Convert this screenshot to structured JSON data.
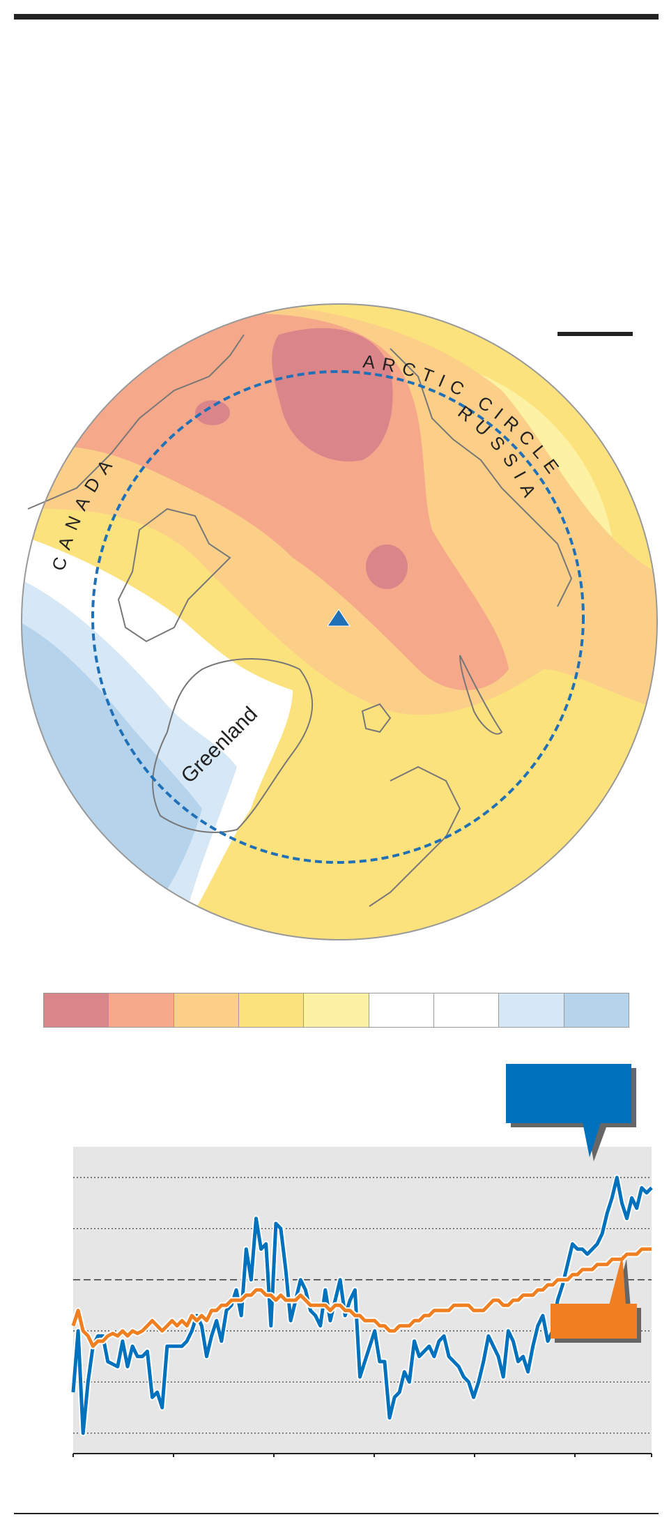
{
  "map": {
    "labels": {
      "arctic_circle": "ARCTIC CIRCLE",
      "russia": "RUSSIA",
      "canada": "CANADA",
      "greenland": "Greenland"
    },
    "colors": {
      "strong_warm": "#da858a",
      "warm": "#f5a98a",
      "mild_warm": "#fbcf88",
      "slight_warm": "#fce27d",
      "near_normal_warm": "#fdf2a3",
      "neutral": "#ffffff",
      "slight_cool": "#d6e8f6",
      "cool": "#b6d3ec",
      "arctic_circle_line": "#1f70b7",
      "north_pole_marker": "#1f70b7",
      "coastline": "#777777",
      "ocean_outline": "#999999"
    },
    "marker": "north-pole-triangle-icon"
  },
  "legend": {
    "swatches": [
      "#da858a",
      "#f5a98a",
      "#fbcf88",
      "#fce27d",
      "#fdf2a3",
      "#ffffff",
      "#ffffff",
      "#d6e8f6",
      "#b6d3ec"
    ]
  },
  "chart_data": {
    "type": "line",
    "n_points": 118,
    "series": [
      {
        "color": "#0071bc",
        "values": [
          -1.2,
          0.0,
          -2.0,
          -1.0,
          -0.3,
          -0.1,
          -0.1,
          -0.6,
          -0.65,
          -0.7,
          -0.2,
          -0.7,
          -0.3,
          -0.5,
          -0.5,
          -0.4,
          -1.3,
          -1.2,
          -1.5,
          -0.3,
          -0.3,
          -0.3,
          -0.3,
          -0.2,
          0.0,
          0.3,
          0.1,
          -0.5,
          -0.1,
          0.2,
          -0.2,
          0.4,
          0.5,
          0.8,
          0.3,
          1.6,
          1.0,
          2.2,
          1.6,
          1.7,
          0.1,
          2.1,
          2.0,
          1.2,
          0.2,
          0.6,
          1.0,
          0.8,
          0.4,
          0.3,
          0.1,
          0.8,
          0.2,
          0.6,
          1.0,
          0.3,
          0.6,
          0.8,
          -0.9,
          -0.6,
          -0.3,
          0.0,
          -0.6,
          -0.6,
          -1.7,
          -1.3,
          -1.2,
          -0.8,
          -1.0,
          -0.2,
          -0.5,
          -0.4,
          -0.3,
          -0.5,
          -0.2,
          -0.1,
          -0.5,
          -0.6,
          -0.7,
          -0.9,
          -1.0,
          -1.3,
          -1.0,
          -0.6,
          -0.1,
          -0.3,
          -0.5,
          -0.9,
          0.0,
          -0.2,
          -0.6,
          -0.5,
          -0.8,
          -0.3,
          0.1,
          0.3,
          -0.2,
          0.0,
          0.6,
          0.9,
          1.3,
          1.7,
          1.6,
          1.6,
          1.5,
          1.6,
          1.7,
          1.9,
          2.3,
          2.6,
          3.0,
          2.5,
          2.2,
          2.6,
          2.4,
          2.8,
          2.7,
          2.8
        ]
      },
      {
        "color": "#f07f21",
        "values": [
          0.1,
          0.4,
          0.0,
          -0.1,
          -0.3,
          -0.2,
          -0.2,
          -0.1,
          -0.05,
          -0.1,
          0.0,
          -0.1,
          0.0,
          -0.05,
          0.0,
          0.1,
          0.2,
          0.1,
          0.0,
          0.1,
          0.2,
          0.1,
          0.2,
          0.1,
          0.3,
          0.2,
          0.3,
          0.2,
          0.4,
          0.4,
          0.5,
          0.5,
          0.6,
          0.6,
          0.6,
          0.7,
          0.7,
          0.8,
          0.8,
          0.7,
          0.7,
          0.6,
          0.7,
          0.6,
          0.6,
          0.6,
          0.7,
          0.6,
          0.5,
          0.5,
          0.5,
          0.5,
          0.4,
          0.5,
          0.5,
          0.4,
          0.4,
          0.3,
          0.3,
          0.2,
          0.2,
          0.2,
          0.1,
          0.1,
          0.0,
          0.0,
          0.1,
          0.1,
          0.1,
          0.2,
          0.2,
          0.3,
          0.3,
          0.4,
          0.4,
          0.4,
          0.4,
          0.5,
          0.5,
          0.5,
          0.5,
          0.4,
          0.4,
          0.4,
          0.5,
          0.6,
          0.6,
          0.5,
          0.5,
          0.6,
          0.6,
          0.7,
          0.7,
          0.7,
          0.8,
          0.8,
          0.9,
          0.9,
          1.0,
          1.0,
          1.0,
          1.1,
          1.1,
          1.2,
          1.2,
          1.2,
          1.3,
          1.3,
          1.3,
          1.4,
          1.4,
          1.4,
          1.5,
          1.5,
          1.5,
          1.6,
          1.6,
          1.6
        ]
      }
    ],
    "grid": true,
    "callout_colors": {
      "arctic": "#0071bc",
      "global": "#f07f21"
    }
  }
}
